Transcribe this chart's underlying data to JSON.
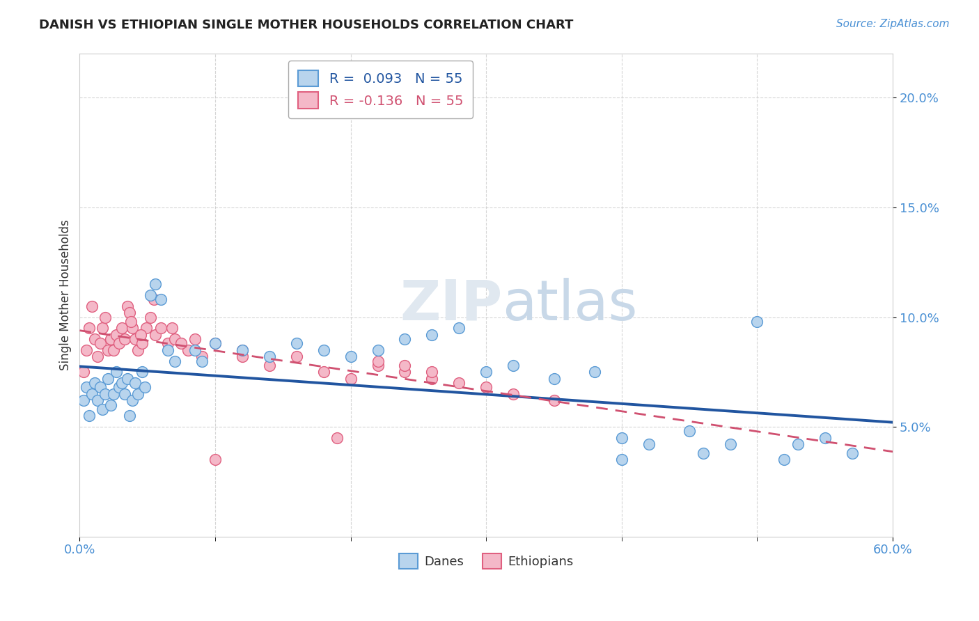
{
  "title": "DANISH VS ETHIOPIAN SINGLE MOTHER HOUSEHOLDS CORRELATION CHART",
  "source": "Source: ZipAtlas.com",
  "ylabel": "Single Mother Households",
  "legend_danes": "Danes",
  "legend_ethiopians": "Ethiopians",
  "r_danes": 0.093,
  "n_danes": 55,
  "r_ethiopians": -0.136,
  "n_ethiopians": 55,
  "danes_color": "#b8d4ed",
  "danes_edge_color": "#5b9bd5",
  "ethiopians_color": "#f4b8c8",
  "ethiopians_edge_color": "#e06080",
  "trend_danes_color": "#2155a0",
  "trend_ethiopians_color": "#d05070",
  "background_color": "#ffffff",
  "xlim": [
    0,
    60
  ],
  "ylim": [
    0,
    22
  ],
  "yticks": [
    5,
    10,
    15,
    20
  ],
  "xticks_minor": [
    10,
    20,
    30,
    40,
    50
  ],
  "danes_x": [
    0.3,
    0.5,
    0.7,
    0.9,
    1.1,
    1.3,
    1.5,
    1.7,
    1.9,
    2.1,
    2.3,
    2.5,
    2.7,
    2.9,
    3.1,
    3.3,
    3.5,
    3.7,
    3.9,
    4.1,
    4.3,
    4.6,
    4.8,
    5.2,
    5.6,
    6.0,
    6.5,
    7.0,
    8.5,
    9.0,
    10.0,
    12.0,
    14.0,
    16.0,
    18.0,
    20.0,
    22.0,
    24.0,
    26.0,
    28.0,
    30.0,
    32.0,
    35.0,
    38.0,
    40.0,
    42.0,
    45.0,
    48.0,
    50.0,
    53.0,
    55.0,
    57.0,
    40.0,
    46.0,
    52.0
  ],
  "danes_y": [
    6.2,
    6.8,
    5.5,
    6.5,
    7.0,
    6.2,
    6.8,
    5.8,
    6.5,
    7.2,
    6.0,
    6.5,
    7.5,
    6.8,
    7.0,
    6.5,
    7.2,
    5.5,
    6.2,
    7.0,
    6.5,
    7.5,
    6.8,
    11.0,
    11.5,
    10.8,
    8.5,
    8.0,
    8.5,
    8.0,
    8.8,
    8.5,
    8.2,
    8.8,
    8.5,
    8.2,
    8.5,
    9.0,
    9.2,
    9.5,
    7.5,
    7.8,
    7.2,
    7.5,
    4.5,
    4.2,
    4.8,
    4.2,
    9.8,
    4.2,
    4.5,
    3.8,
    3.5,
    3.8,
    3.5
  ],
  "ethiopians_x": [
    0.3,
    0.5,
    0.7,
    0.9,
    1.1,
    1.3,
    1.5,
    1.7,
    1.9,
    2.1,
    2.3,
    2.5,
    2.7,
    2.9,
    3.1,
    3.3,
    3.5,
    3.7,
    3.9,
    4.1,
    4.3,
    4.6,
    4.9,
    5.2,
    5.6,
    6.0,
    6.5,
    7.0,
    8.0,
    9.0,
    10.0,
    12.0,
    14.0,
    16.0,
    18.0,
    20.0,
    22.0,
    24.0,
    26.0,
    28.0,
    30.0,
    32.0,
    35.0,
    22.0,
    24.0,
    26.0,
    3.8,
    4.5,
    5.5,
    6.8,
    7.5,
    8.5,
    10.0,
    12.0,
    19.0
  ],
  "ethiopians_y": [
    7.5,
    8.5,
    9.5,
    10.5,
    9.0,
    8.2,
    8.8,
    9.5,
    10.0,
    8.5,
    9.0,
    8.5,
    9.2,
    8.8,
    9.5,
    9.0,
    10.5,
    10.2,
    9.5,
    9.0,
    8.5,
    8.8,
    9.5,
    10.0,
    9.2,
    9.5,
    8.8,
    9.0,
    8.5,
    8.2,
    8.8,
    8.5,
    7.8,
    8.2,
    7.5,
    7.2,
    7.8,
    7.5,
    7.2,
    7.0,
    6.8,
    6.5,
    6.2,
    8.0,
    7.8,
    7.5,
    9.8,
    9.2,
    10.8,
    9.5,
    8.8,
    9.0,
    3.5,
    8.2,
    4.5
  ]
}
